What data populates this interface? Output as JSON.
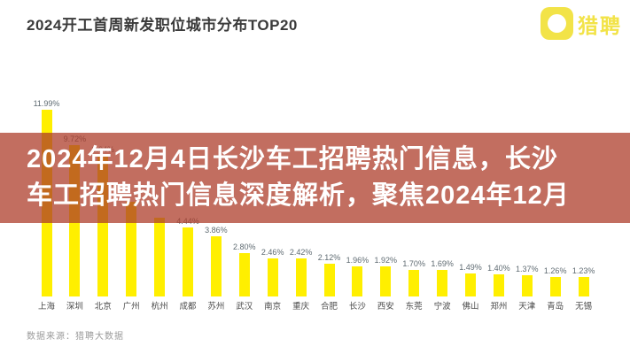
{
  "header": {
    "title": "2024开工首周新发职位城市分布TOP20",
    "logo": {
      "brand": "猎聘",
      "color": "#f2e348",
      "icon": "liepin-rounded-square-with-circle"
    }
  },
  "overlay": {
    "line1": "2024年12月4日长沙车工招聘热门信息，长沙",
    "line2": "车工招聘热门信息深度解析，聚焦2024年12月",
    "background": "#ad3c28",
    "text_color": "#ffffff"
  },
  "footer": {
    "source": "数据来源：猎聘大数据"
  },
  "chart_data": {
    "type": "bar",
    "title": "2024开工首周新发职位城市分布TOP20",
    "categories": [
      "上海",
      "深圳",
      "北京",
      "广州",
      "杭州",
      "成都",
      "苏州",
      "武汉",
      "南京",
      "重庆",
      "合肥",
      "长沙",
      "西安",
      "东莞",
      "宁波",
      "佛山",
      "郑州",
      "天津",
      "青岛",
      "无锡"
    ],
    "values": [
      11.99,
      9.72,
      9.04,
      6.08,
      5.06,
      4.44,
      3.86,
      2.8,
      2.46,
      2.42,
      2.12,
      1.96,
      1.92,
      1.7,
      1.69,
      1.49,
      1.4,
      1.37,
      1.26,
      1.23
    ],
    "value_labels": [
      "11.99%",
      "9.72%",
      "9.04%",
      "6.08%",
      "5.06%",
      "4.44%",
      "3.86%",
      "2.80%",
      "2.46%",
      "2.42%",
      "2.12%",
      "1.96%",
      "1.92%",
      "1.70%",
      "1.69%",
      "1.49%",
      "1.40%",
      "1.37%",
      "1.26%",
      "1.23%"
    ],
    "hidden_label_indices": [
      3,
      4
    ],
    "bar_color": "#ffef00",
    "value_label_color": "#5f6b72",
    "unit": "%",
    "ylim": [
      0,
      13
    ],
    "grid": false,
    "legend": "none"
  }
}
